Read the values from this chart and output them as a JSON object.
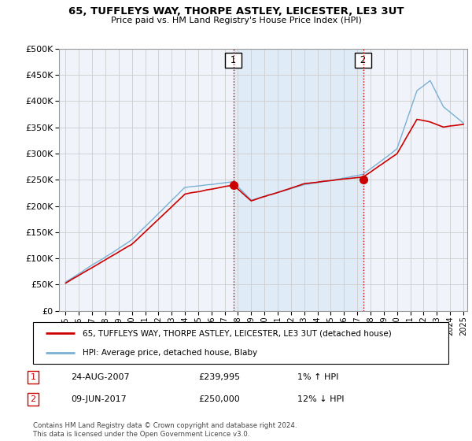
{
  "title": "65, TUFFLEYS WAY, THORPE ASTLEY, LEICESTER, LE3 3UT",
  "subtitle": "Price paid vs. HM Land Registry's House Price Index (HPI)",
  "legend_line1": "65, TUFFLEYS WAY, THORPE ASTLEY, LEICESTER, LE3 3UT (detached house)",
  "legend_line2": "HPI: Average price, detached house, Blaby",
  "annotation1_date": "24-AUG-2007",
  "annotation1_price": "£239,995",
  "annotation1_hpi": "1% ↑ HPI",
  "annotation2_date": "09-JUN-2017",
  "annotation2_price": "£250,000",
  "annotation2_hpi": "12% ↓ HPI",
  "footer": "Contains HM Land Registry data © Crown copyright and database right 2024.\nThis data is licensed under the Open Government Licence v3.0.",
  "hpi_color": "#7ab0d4",
  "hpi_fill_color": "#d8e8f5",
  "price_color": "#cc0000",
  "marker_color": "#cc0000",
  "background_color": "#ffffff",
  "plot_bg_color": "#f0f4fa",
  "ylim": [
    0,
    500000
  ],
  "yticks": [
    0,
    50000,
    100000,
    150000,
    200000,
    250000,
    300000,
    350000,
    400000,
    450000,
    500000
  ],
  "sale1_x": 2007.65,
  "sale1_y": 239995,
  "sale2_x": 2017.44,
  "sale2_y": 250000,
  "vline1_x": 2007.65,
  "vline2_x": 2017.44,
  "xmin": 1995,
  "xmax": 2025
}
